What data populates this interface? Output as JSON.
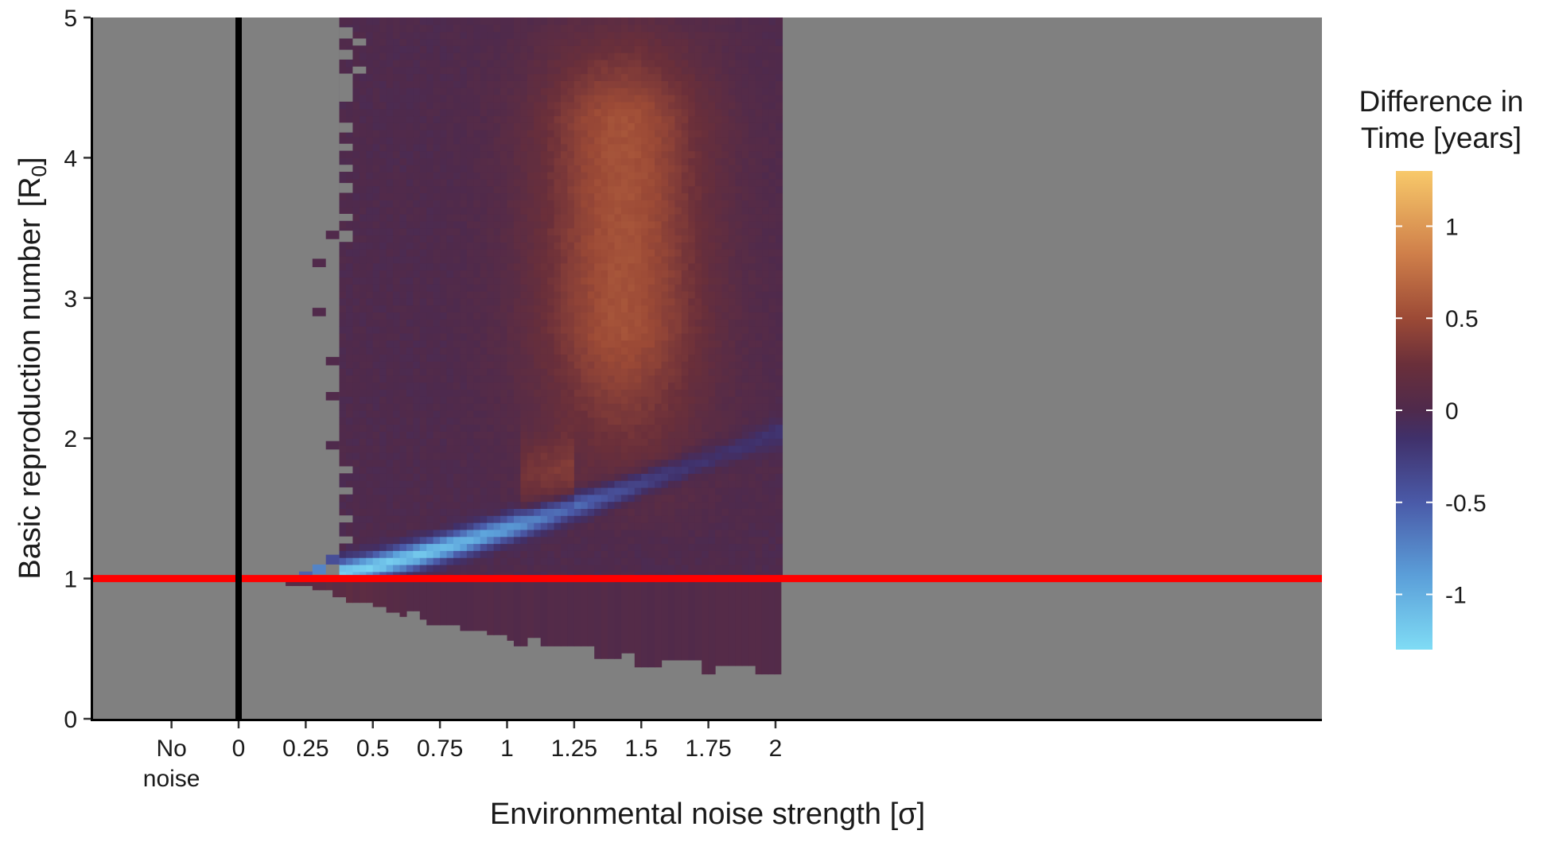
{
  "chart_data": {
    "type": "heatmap",
    "title": "",
    "xlabel": "Environmental noise strength [σ]",
    "ylabel": "Basic reproduction number",
    "ylabel_bracket": "[R",
    "ylabel_sub": "0",
    "ylabel_close": "]",
    "x_ticks": [
      {
        "value": -0.25,
        "label": "No",
        "label2": "noise"
      },
      {
        "value": 0,
        "label": "0"
      },
      {
        "value": 0.25,
        "label": "0.25"
      },
      {
        "value": 0.5,
        "label": "0.5"
      },
      {
        "value": 0.75,
        "label": "0.75"
      },
      {
        "value": 1,
        "label": "1"
      },
      {
        "value": 1.25,
        "label": "1.25"
      },
      {
        "value": 1.5,
        "label": "1.5"
      },
      {
        "value": 1.75,
        "label": "1.75"
      },
      {
        "value": 2,
        "label": "2"
      }
    ],
    "y_ticks": [
      {
        "value": 0,
        "label": "0"
      },
      {
        "value": 1,
        "label": "1"
      },
      {
        "value": 2,
        "label": "2"
      },
      {
        "value": 3,
        "label": "3"
      },
      {
        "value": 4,
        "label": "4"
      },
      {
        "value": 5,
        "label": "5"
      }
    ],
    "xlim": [
      -0.5,
      2.02
    ],
    "ylim": [
      0,
      5
    ],
    "reference_lines": [
      {
        "orientation": "horizontal",
        "value": 1,
        "color": "#ff0000"
      },
      {
        "orientation": "vertical",
        "value": 0,
        "color": "#000000"
      }
    ],
    "missing_color": "#808080",
    "colorscale": {
      "title_line1": "Difference in",
      "title_line2": "Time [years]",
      "min": -1.3,
      "max": 1.3,
      "ticks": [
        {
          "value": 1,
          "label": "1"
        },
        {
          "value": 0.5,
          "label": "0.5"
        },
        {
          "value": 0,
          "label": "0"
        },
        {
          "value": -0.5,
          "label": "-0.5"
        },
        {
          "value": -1,
          "label": "-1"
        }
      ],
      "stops": [
        {
          "value": -1.3,
          "color": "#7fdcf5"
        },
        {
          "value": -0.9,
          "color": "#5b9fd9"
        },
        {
          "value": -0.5,
          "color": "#4a5aa8"
        },
        {
          "value": -0.15,
          "color": "#40306a"
        },
        {
          "value": 0,
          "color": "#4f2a4c"
        },
        {
          "value": 0.25,
          "color": "#6a2f3a"
        },
        {
          "value": 0.5,
          "color": "#9c4a36"
        },
        {
          "value": 0.85,
          "color": "#cf7f4a"
        },
        {
          "value": 1.3,
          "color": "#f8c96a"
        }
      ]
    },
    "cells": {
      "x_start": -0.18,
      "x_step": 0.025,
      "y_start": 0,
      "y_step": 0.05,
      "data_x_start": 0.375,
      "lower_boundary": [
        {
          "x_from": -0.5,
          "x_to": 0.175,
          "r": 1.0
        },
        {
          "x_from": 0.175,
          "x_to": 0.275,
          "r": 0.95
        },
        {
          "x_from": 0.275,
          "x_to": 0.35,
          "r": 0.92
        },
        {
          "x_from": 0.35,
          "x_to": 0.4,
          "r": 0.87
        },
        {
          "x_from": 0.4,
          "x_to": 0.5,
          "r": 0.83
        },
        {
          "x_from": 0.5,
          "x_to": 0.55,
          "r": 0.8
        },
        {
          "x_from": 0.55,
          "x_to": 0.6,
          "r": 0.76
        },
        {
          "x_from": 0.6,
          "x_to": 0.625,
          "r": 0.73
        },
        {
          "x_from": 0.625,
          "x_to": 0.675,
          "r": 0.77
        },
        {
          "x_from": 0.675,
          "x_to": 0.7,
          "r": 0.71
        },
        {
          "x_from": 0.7,
          "x_to": 0.825,
          "r": 0.67
        },
        {
          "x_from": 0.825,
          "x_to": 0.925,
          "r": 0.63
        },
        {
          "x_from": 0.925,
          "x_to": 1.0,
          "r": 0.6
        },
        {
          "x_from": 1.0,
          "x_to": 1.025,
          "r": 0.56
        },
        {
          "x_from": 1.025,
          "x_to": 1.075,
          "r": 0.52
        },
        {
          "x_from": 1.075,
          "x_to": 1.125,
          "r": 0.58
        },
        {
          "x_from": 1.125,
          "x_to": 1.325,
          "r": 0.52
        },
        {
          "x_from": 1.325,
          "x_to": 1.425,
          "r": 0.43
        },
        {
          "x_from": 1.425,
          "x_to": 1.475,
          "r": 0.47
        },
        {
          "x_from": 1.475,
          "x_to": 1.575,
          "r": 0.37
        },
        {
          "x_from": 1.575,
          "x_to": 1.725,
          "r": 0.42
        },
        {
          "x_from": 1.725,
          "x_to": 1.775,
          "r": 0.32
        },
        {
          "x_from": 1.775,
          "x_to": 1.925,
          "r": 0.38
        },
        {
          "x_from": 1.925,
          "x_to": 2.02,
          "r": 0.32
        }
      ],
      "sparse_left": [
        {
          "x0": 0.275,
          "x1": 0.325,
          "r0": 3.22,
          "r1": 3.28
        },
        {
          "x0": 0.275,
          "x1": 0.325,
          "r0": 2.87,
          "r1": 2.93
        },
        {
          "x0": 0.325,
          "x1": 0.375,
          "r0": 2.52,
          "r1": 2.58
        },
        {
          "x0": 0.325,
          "x1": 0.375,
          "r0": 2.27,
          "r1": 2.33
        },
        {
          "x0": 0.325,
          "x1": 0.375,
          "r0": 1.92,
          "r1": 1.98
        },
        {
          "x0": 0.325,
          "x1": 0.375,
          "r0": 3.42,
          "r1": 3.48
        },
        {
          "x0": 0.325,
          "x1": 0.375,
          "r0": 1.1,
          "r1": 1.17
        },
        {
          "x0": 0.275,
          "x1": 0.325,
          "r0": 1.03,
          "r1": 1.1
        },
        {
          "x0": 0.225,
          "x1": 0.275,
          "r0": 0.98,
          "r1": 1.05
        }
      ],
      "gray_notches": [
        {
          "x0": 0.375,
          "x1": 0.425,
          "r0": 4.85,
          "r1": 4.93
        },
        {
          "x0": 0.425,
          "x1": 0.475,
          "r0": 4.8,
          "r1": 4.85
        },
        {
          "x0": 0.375,
          "x1": 0.425,
          "r0": 4.7,
          "r1": 4.77
        },
        {
          "x0": 0.425,
          "x1": 0.475,
          "r0": 4.6,
          "r1": 4.65
        },
        {
          "x0": 0.375,
          "x1": 0.425,
          "r0": 4.4,
          "r1": 4.6
        },
        {
          "x0": 0.375,
          "x1": 0.425,
          "r0": 4.18,
          "r1": 4.25
        },
        {
          "x0": 0.375,
          "x1": 0.425,
          "r0": 4.05,
          "r1": 4.1
        },
        {
          "x0": 0.375,
          "x1": 0.425,
          "r0": 3.9,
          "r1": 3.95
        },
        {
          "x0": 0.375,
          "x1": 0.425,
          "r0": 3.75,
          "r1": 3.82
        },
        {
          "x0": 0.375,
          "x1": 0.425,
          "r0": 3.55,
          "r1": 3.6
        },
        {
          "x0": 0.375,
          "x1": 0.425,
          "r0": 3.4,
          "r1": 3.48
        },
        {
          "x0": 0.375,
          "x1": 0.425,
          "r0": 1.75,
          "r1": 1.8
        },
        {
          "x0": 0.375,
          "x1": 0.425,
          "r0": 1.6,
          "r1": 1.65
        },
        {
          "x0": 0.375,
          "x1": 0.425,
          "r0": 1.4,
          "r1": 1.45
        },
        {
          "x0": 0.375,
          "x1": 0.425,
          "r0": 1.25,
          "r1": 1.3
        }
      ]
    }
  }
}
